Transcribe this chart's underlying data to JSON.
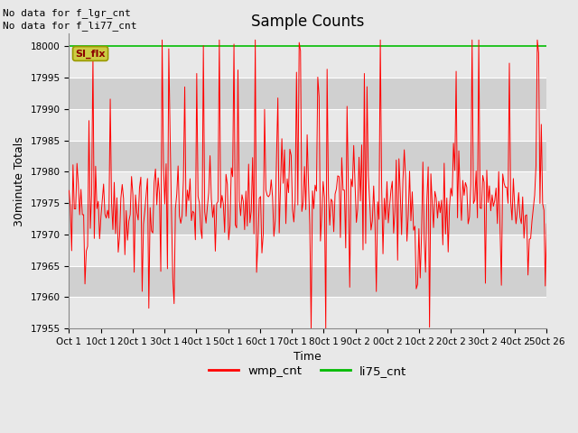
{
  "title": "Sample Counts",
  "xlabel": "Time",
  "ylabel": "30minute Totals",
  "x_tick_labels": [
    "Oct 1",
    "10ct 1",
    "20ct 1",
    "30ct 1",
    "40ct 1",
    "50ct 1",
    "60ct 1",
    "70ct 1",
    "80ct 1",
    "90ct 2",
    "00ct 2",
    "10ct 2",
    "20ct 2",
    "30ct 2",
    "40ct 2",
    "50ct 26"
  ],
  "ylim": [
    17955,
    18002
  ],
  "yticks": [
    17955,
    17960,
    17965,
    17970,
    17975,
    17980,
    17985,
    17990,
    17995,
    18000
  ],
  "wmp_color": "#ff0000",
  "li75_color": "#00bb00",
  "si_flx_bg": "#cccc44",
  "si_flx_edge": "#999900",
  "fig_bg": "#e8e8e8",
  "plot_bg_light": "#e8e8e8",
  "plot_bg_dark": "#d0d0d0",
  "no_data_text1": "No data for f_lgr_cnt",
  "no_data_text2": "No data for f_li77_cnt",
  "si_flx_label": "SI_flx",
  "legend_labels": [
    "wmp_cnt",
    "li75_cnt"
  ],
  "seed": 42,
  "n_points": 360,
  "li75_value": 18000,
  "title_fontsize": 12,
  "axis_fontsize": 9,
  "tick_fontsize": 7.5,
  "nodata_fontsize": 8
}
